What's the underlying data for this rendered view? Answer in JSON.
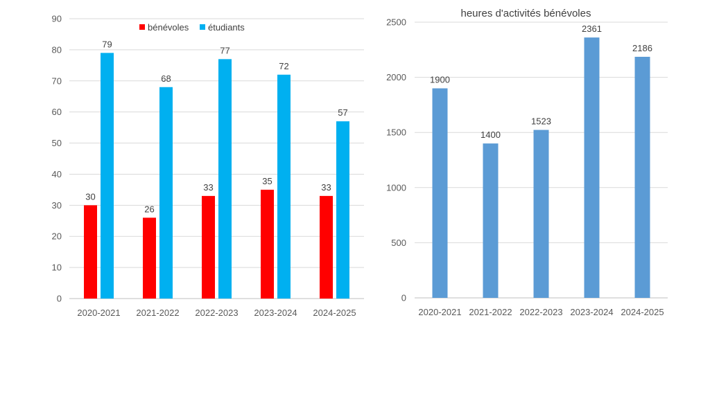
{
  "chart_data": [
    {
      "type": "bar",
      "title": "",
      "categories": [
        "2020-2021",
        "2021-2022",
        "2022-2023",
        "2023-2024",
        "2024-2025"
      ],
      "series": [
        {
          "name": "bénévoles",
          "values": [
            30,
            26,
            33,
            35,
            33
          ],
          "color": "#ff0000"
        },
        {
          "name": "étudiants",
          "values": [
            79,
            68,
            77,
            72,
            57
          ],
          "color": "#00b0f0"
        }
      ],
      "ylim": [
        0,
        90
      ],
      "yticks": [
        0,
        10,
        20,
        30,
        40,
        50,
        60,
        70,
        80,
        90
      ],
      "grid": true,
      "legend": "top-center",
      "data_labels": true
    },
    {
      "type": "bar",
      "title": "heures d'activités bénévoles",
      "categories": [
        "2020-2021",
        "2021-2022",
        "2022-2023",
        "2023-2024",
        "2024-2025"
      ],
      "series": [
        {
          "values": [
            1900,
            1400,
            1523,
            2361,
            2186
          ],
          "color": "#5b9bd5"
        }
      ],
      "ylim": [
        0,
        2500
      ],
      "yticks": [
        0,
        500,
        1000,
        1500,
        2000,
        2500
      ],
      "grid": true,
      "data_labels": true
    }
  ]
}
